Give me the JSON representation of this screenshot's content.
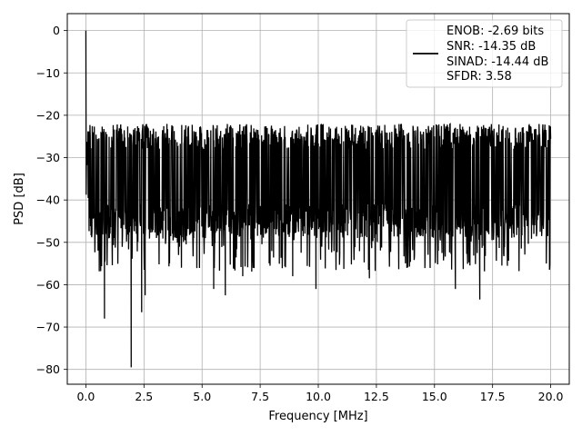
{
  "chart_data": {
    "type": "line",
    "title": "",
    "xlabel": "Frequency [MHz]",
    "ylabel": "PSD [dB]",
    "xlim": [
      -0.8,
      20.8
    ],
    "ylim": [
      -83.5,
      4
    ],
    "x_ticks": [
      0.0,
      2.5,
      5.0,
      7.5,
      10.0,
      12.5,
      15.0,
      17.5,
      20.0
    ],
    "x_tick_labels": [
      "0.0",
      "2.5",
      "5.0",
      "7.5",
      "10.0",
      "12.5",
      "15.0",
      "17.5",
      "20.0"
    ],
    "y_ticks": [
      0,
      -10,
      -20,
      -30,
      -40,
      -50,
      -60,
      -70,
      -80
    ],
    "y_tick_labels": [
      "0",
      "−10",
      "−20",
      "−30",
      "−40",
      "−50",
      "−60",
      "−70",
      "−80"
    ],
    "grid": true,
    "legend_position": "top-right",
    "series": [
      {
        "name": "ENOB: -2.69 bits\nSNR: -14.35 dB\nSINAD: -14.44 dB\nSFDR: 3.58",
        "color": "#000000",
        "x_range": [
          0,
          20
        ],
        "spike": {
          "x": 0.0,
          "y": 0
        },
        "envelope_top": -22,
        "envelope_bottom": -45,
        "notable_minima": [
          {
            "x": 1.95,
            "y": -79.5
          },
          {
            "x": 0.8,
            "y": -68
          },
          {
            "x": 2.4,
            "y": -66.5
          },
          {
            "x": 2.55,
            "y": -62.5
          },
          {
            "x": 6.0,
            "y": -62.5
          },
          {
            "x": 5.5,
            "y": -61
          },
          {
            "x": 9.9,
            "y": -61
          },
          {
            "x": 15.9,
            "y": -61
          },
          {
            "x": 16.95,
            "y": -63.5
          },
          {
            "x": 12.2,
            "y": -58.5
          },
          {
            "x": 8.9,
            "y": -58
          },
          {
            "x": 6.75,
            "y": -58
          }
        ]
      }
    ]
  },
  "legend": {
    "lines": [
      "ENOB: -2.69 bits",
      "SNR: -14.35 dB",
      "SINAD: -14.44 dB",
      "SFDR: 3.58"
    ]
  }
}
